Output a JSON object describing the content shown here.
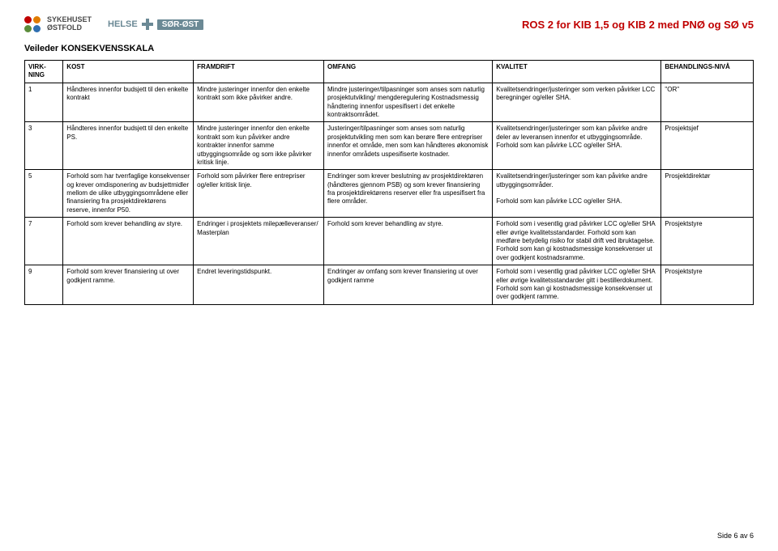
{
  "header": {
    "doc_title": "ROS 2 for KIB 1,5 og KIB 2 med PNØ og SØ  v5",
    "doc_title_color": "#c00000",
    "ostfold_logo": {
      "line1": "SYKEHUSET",
      "line2": "ØSTFOLD",
      "dot_colors": [
        "#c00000",
        "#e07b00",
        "#5b8c3a",
        "#2f6fb1"
      ]
    },
    "helse_logo": {
      "text_left": "HELSE",
      "cross_color": "#6b8995",
      "pill_text": "SØR-ØST"
    }
  },
  "section_title": "Veileder KONSEKVENSSKALA",
  "table": {
    "columns": [
      "VIRK-NING",
      "KOST",
      "FRAMDRIFT",
      "OMFANG",
      "KVALITET",
      "BEHANDLINGS-NIVÅ"
    ],
    "rows": [
      {
        "virkning": "1",
        "kost": "Håndteres innenfor budsjett til den enkelte kontrakt",
        "framdrift": "Mindre justeringer innenfor den enkelte kontrakt som ikke påvirker andre.",
        "omfang": "Mindre justeringer/tilpasninger som anses som naturlig prosjektutvikling/ mengderegulering Kostnadsmessig håndtering innenfor uspesifisert i det enkelte kontraktsområdet.",
        "kvalitet": "Kvalitetsendringer/justeringer som verken påvirker LCC beregninger og/eller SHA.",
        "behandling": "\"OR\""
      },
      {
        "virkning": "3",
        "kost": "Håndteres innenfor budsjett til den enkelte PS.",
        "framdrift": "Mindre justeringer innenfor den enkelte kontrakt som kun påvirker andre kontrakter innenfor samme utbyggingsområde og som ikke påvirker kritisk linje.",
        "omfang": "Justeringer/tilpasninger som anses som naturlig prosjektutvikling men som kan berøre flere entrepriser innenfor et område, men som kan håndteres økonomisk innenfor områdets uspesifiserte kostnader.",
        "kvalitet": "Kvalitetsendringer/justeringer som kan påvirke andre deler av leveransen innenfor et utbyggingsområde. Forhold som kan påvirke LCC og/eller SHA.",
        "behandling": "Prosjektsjef"
      },
      {
        "virkning": "5",
        "kost": "Forhold som har tverrfaglige konsekvenser og krever omdisponering av budsjettmidler mellom de ulike utbyggingsområdene eller finansiering fra prosjektdirektørens reserve, innenfor P50.",
        "framdrift": "Forhold som påvirker flere entrepriser og/eller kritisk linje.",
        "omfang": "Endringer som krever beslutning av prosjektdirektøren (håndteres gjennom PSB) og som krever finansiering fra prosjektdirektørens reserver eller fra uspesifisert fra flere områder.",
        "kvalitet": "Kvalitetsendringer/justeringer som kan påvirke andre utbyggingsområder.\n\nForhold som kan påvirke LCC og/eller SHA.",
        "behandling": "Prosjektdirektør"
      },
      {
        "virkning": "7",
        "kost": "Forhold som krever behandling av styre.",
        "framdrift": "Endringer i prosjektets milepælleveranser/ Masterplan",
        "omfang": "Forhold som krever behandling av styre.",
        "kvalitet": "Forhold som i vesentlig grad påvirker LCC og/eller SHA eller øvrige kvalitetsstandarder. Forhold som kan medføre betydelig risiko for stabil drift ved ibruktagelse. Forhold som kan gi kostnadsmessige konsekvenser ut over godkjent kostnadsramme.",
        "behandling": "Prosjektstyre"
      },
      {
        "virkning": "9",
        "kost": "Forhold som krever finansiering ut over godkjent ramme.",
        "framdrift": "Endret leveringstidspunkt.",
        "omfang": "Endringer av omfang som krever finansiering ut over godkjent ramme",
        "kvalitet": "Forhold som i vesentlig grad påvirker LCC og/eller SHA eller øvrige kvalitetsstandarder gitt i bestillerdokument. Forhold som kan gi kostnadsmessige konsekvenser ut over godkjent ramme.",
        "behandling": "Prosjektstyre"
      }
    ]
  },
  "footer": {
    "text": "Side 6 av 6"
  }
}
